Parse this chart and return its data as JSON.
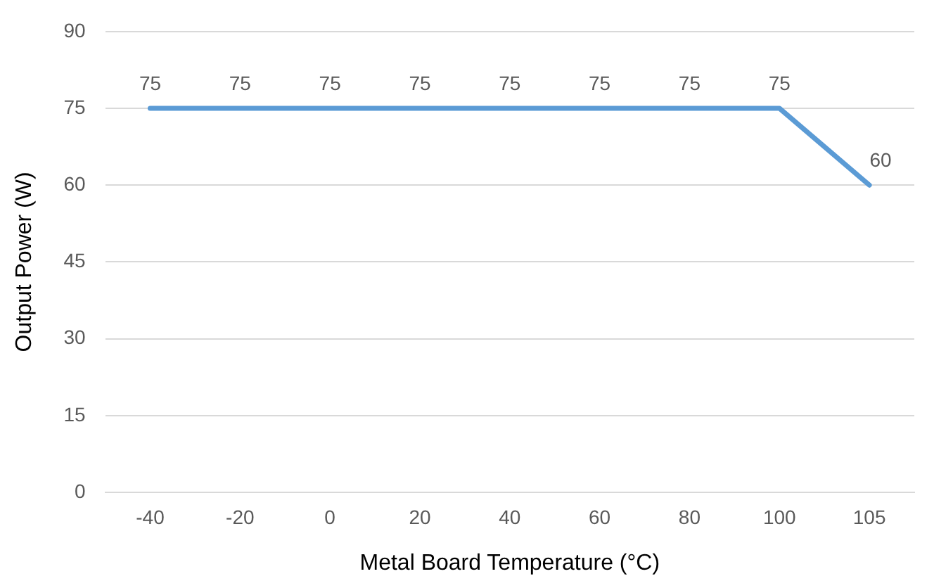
{
  "chart_data": {
    "type": "line",
    "xlabel": "Metal Board Temperature (°C)",
    "ylabel": "Output Power (W)",
    "categories": [
      "-40",
      "-20",
      "0",
      "20",
      "40",
      "60",
      "80",
      "100",
      "105"
    ],
    "series": [
      {
        "color": "#5b9bd5",
        "values": [
          75,
          75,
          75,
          75,
          75,
          75,
          75,
          75,
          60
        ]
      }
    ],
    "ylim": [
      0,
      90
    ],
    "yticks": [
      0,
      15,
      30,
      45,
      60,
      75,
      90
    ],
    "grid": "y",
    "legend": false,
    "marker": "none",
    "data_labels": true
  }
}
